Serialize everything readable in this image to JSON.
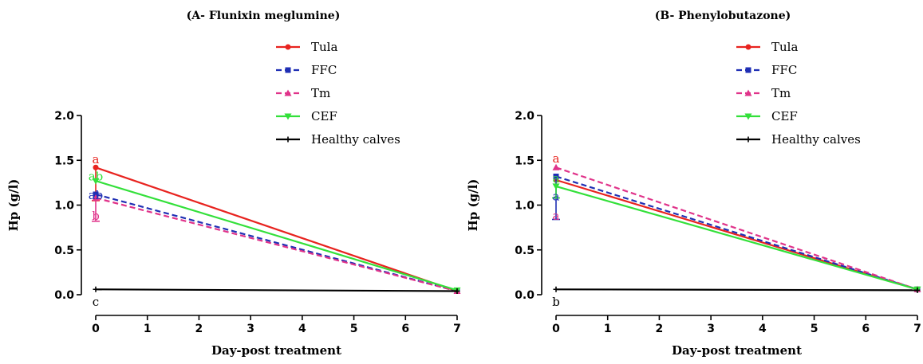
{
  "chart_data": [
    {
      "type": "line",
      "title": "(A- Flunixin meglumine)",
      "xlabel": "Day-post treatment",
      "ylabel": "Hp (g/l)",
      "xlim": [
        0,
        7
      ],
      "ylim": [
        0,
        2.0
      ],
      "x_ticks": [
        "0",
        "1",
        "2",
        "3",
        "4",
        "5",
        "6",
        "7"
      ],
      "y_ticks": [
        "0.0",
        "0.5",
        "1.0",
        "1.5",
        "2.0"
      ],
      "legend_position": "top-center",
      "series": [
        {
          "name": "Tula",
          "color": "#e8231f",
          "dash": "solid",
          "marker": "circle",
          "x": [
            0,
            7
          ],
          "y": [
            1.42,
            0.04
          ],
          "err_low": [
            1.05,
            null
          ],
          "err_high": [
            null,
            null
          ]
        },
        {
          "name": "FFC",
          "color": "#1f2fb4",
          "dash": "dashed",
          "marker": "square",
          "x": [
            0,
            7
          ],
          "y": [
            1.12,
            0.04
          ],
          "err_low": [
            null,
            null
          ],
          "err_high": [
            null,
            null
          ]
        },
        {
          "name": "Tm",
          "color": "#e0338a",
          "dash": "dashed",
          "marker": "triangle",
          "x": [
            0,
            7
          ],
          "y": [
            1.08,
            0.04
          ],
          "err_low": [
            0.82,
            null
          ],
          "err_high": [
            null,
            null
          ]
        },
        {
          "name": "CEF",
          "color": "#33e03a",
          "dash": "solid",
          "marker": "triangle-down",
          "x": [
            0,
            7
          ],
          "y": [
            1.27,
            0.05
          ],
          "err_low": [
            null,
            null
          ],
          "err_high": [
            null,
            null
          ]
        },
        {
          "name": "Healthy calves",
          "color": "#000000",
          "dash": "solid",
          "marker": "plus",
          "x": [
            0,
            7
          ],
          "y": [
            0.06,
            0.04
          ],
          "err_low": [
            null,
            null
          ],
          "err_high": [
            null,
            null
          ]
        }
      ],
      "annotations": [
        {
          "text": "a",
          "color": "#e8231f",
          "x": 0,
          "y": 1.51
        },
        {
          "text": "ab",
          "color": "#33e03a",
          "x": 0,
          "y": 1.32
        },
        {
          "text": "ab",
          "color": "#1f2fb4",
          "x": 0,
          "y": 1.11
        },
        {
          "text": "b",
          "color": "#e0338a",
          "x": 0,
          "y": 0.88
        },
        {
          "text": "c",
          "color": "#000000",
          "x": 0,
          "y": -0.08
        }
      ]
    },
    {
      "type": "line",
      "title": "(B- Phenylobutazone)",
      "xlabel": "Day-post treatment",
      "ylabel": "Hp (g/l)",
      "xlim": [
        0,
        7
      ],
      "ylim": [
        0,
        2.0
      ],
      "x_ticks": [
        "0",
        "1",
        "2",
        "3",
        "4",
        "5",
        "6",
        "7"
      ],
      "y_ticks": [
        "0.0",
        "0.5",
        "1.0",
        "1.5",
        "2.0"
      ],
      "legend_position": "top-center",
      "series": [
        {
          "name": "Tula",
          "color": "#e8231f",
          "dash": "solid",
          "marker": "circle",
          "x": [
            0,
            7
          ],
          "y": [
            1.28,
            0.06
          ],
          "err_low": [
            null,
            null
          ],
          "err_high": [
            null,
            null
          ]
        },
        {
          "name": "FFC",
          "color": "#1f2fb4",
          "dash": "dashed",
          "marker": "square",
          "x": [
            0,
            7
          ],
          "y": [
            1.32,
            0.06
          ],
          "err_low": [
            0.84,
            null
          ],
          "err_high": [
            null,
            null
          ]
        },
        {
          "name": "Tm",
          "color": "#e0338a",
          "dash": "dashed",
          "marker": "triangle",
          "x": [
            0,
            7
          ],
          "y": [
            1.42,
            0.06
          ],
          "err_low": [
            null,
            null
          ],
          "err_high": [
            null,
            null
          ]
        },
        {
          "name": "CEF",
          "color": "#33e03a",
          "dash": "solid",
          "marker": "triangle-down",
          "x": [
            0,
            7
          ],
          "y": [
            1.21,
            0.06
          ],
          "err_low": [
            1.08,
            null
          ],
          "err_high": [
            null,
            null
          ]
        },
        {
          "name": "Healthy calves",
          "color": "#000000",
          "dash": "solid",
          "marker": "plus",
          "x": [
            0,
            7
          ],
          "y": [
            0.06,
            0.05
          ],
          "err_low": [
            null,
            null
          ],
          "err_high": [
            null,
            null
          ]
        }
      ],
      "annotations": [
        {
          "text": "a",
          "color": "#e8231f",
          "x": 0,
          "y": 1.52
        },
        {
          "text": "a",
          "color": "#33e03a",
          "x": 0,
          "y": 1.3
        },
        {
          "text": "a",
          "color": "#1f2fb4",
          "x": 0,
          "y": 1.1
        },
        {
          "text": "a",
          "color": "#e0338a",
          "x": 0,
          "y": 0.88
        },
        {
          "text": "b",
          "color": "#000000",
          "x": 0,
          "y": -0.08
        }
      ]
    }
  ]
}
